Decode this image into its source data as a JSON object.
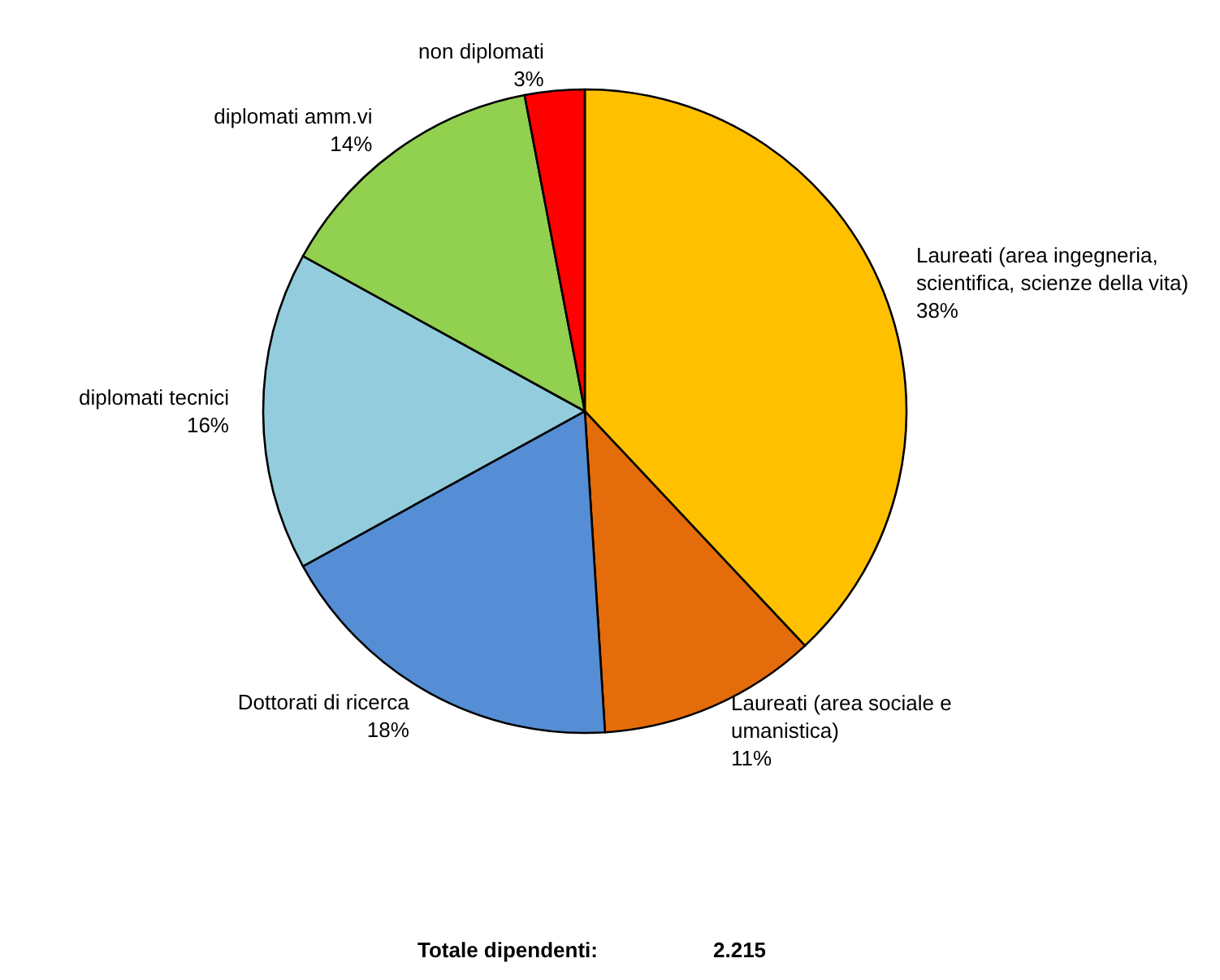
{
  "chart_data": {
    "type": "pie",
    "categories": [
      "Laureati (area ingegneria, scientifica, scienze della vita)",
      "Laureati (area sociale e umanistica)",
      "Dottorati di ricerca",
      "diplomati tecnici",
      "diplomati amm.vi",
      "non diplomati"
    ],
    "values": [
      38,
      11,
      18,
      16,
      14,
      3
    ],
    "colors": [
      "#ffc000",
      "#e46c0a",
      "#558ed5",
      "#93cddd",
      "#92d050",
      "#ff0000"
    ],
    "value_labels": [
      "38%",
      "11%",
      "18%",
      "16%",
      "14%",
      "3%"
    ],
    "legend": false,
    "annotations": [
      "Totale dipendenti:",
      "2.215"
    ]
  }
}
